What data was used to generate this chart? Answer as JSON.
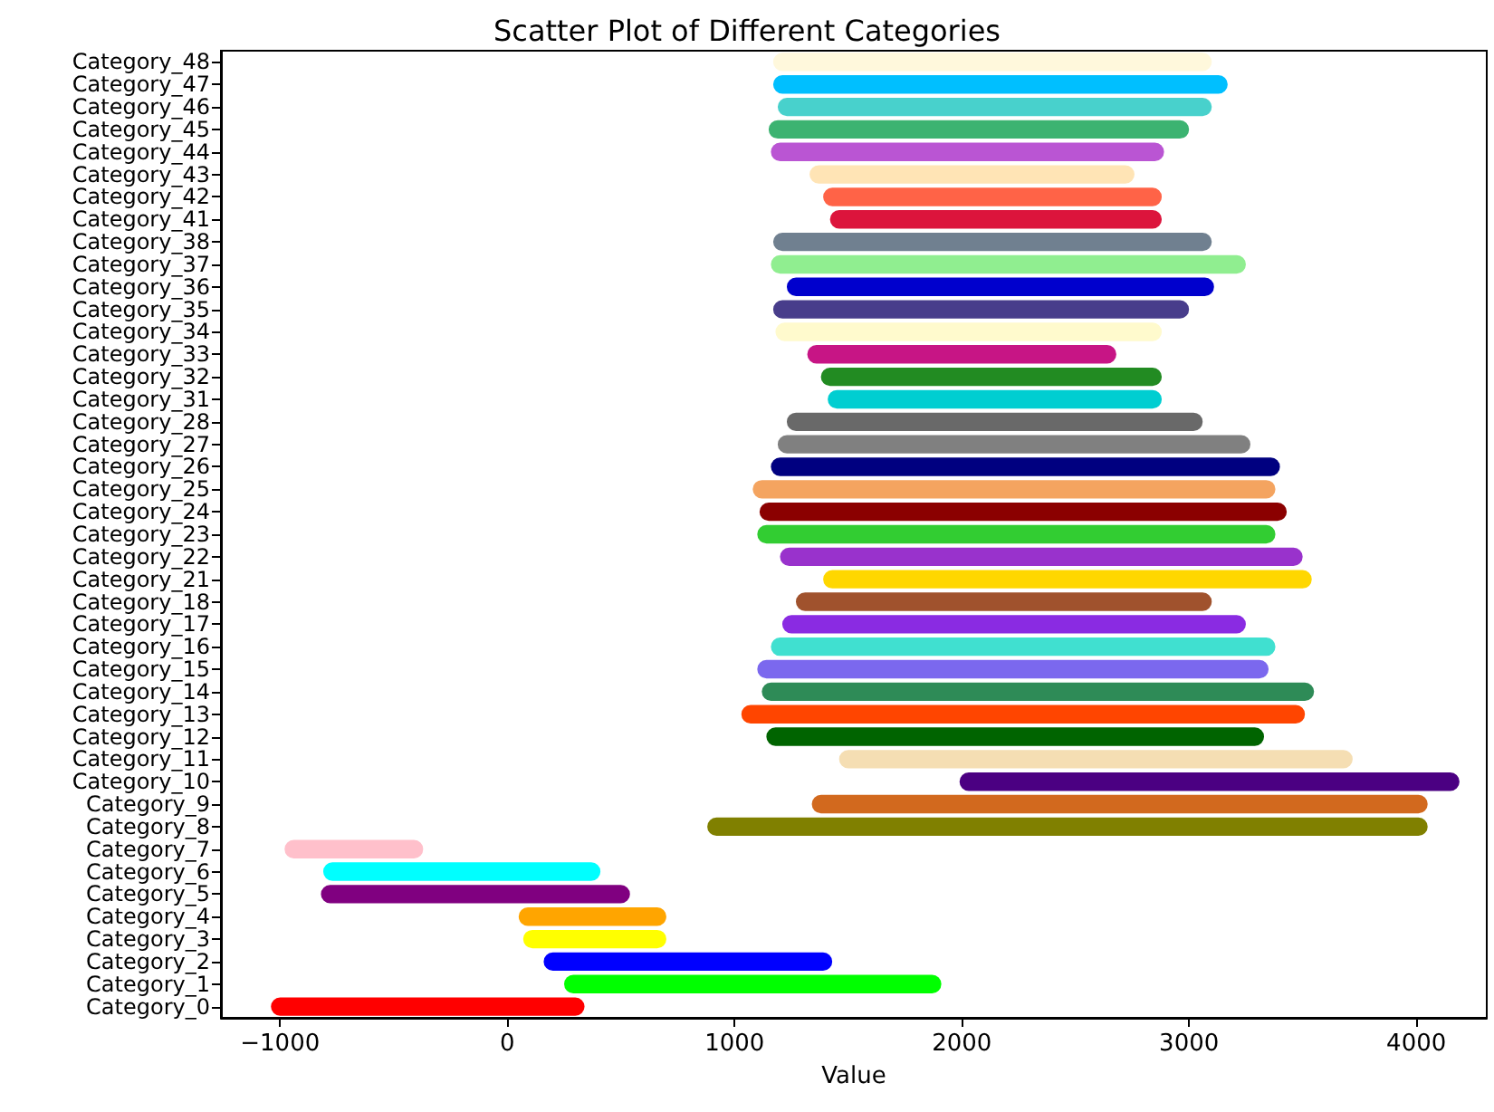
{
  "chart_data": {
    "type": "bar",
    "orientation": "horizontal",
    "title": "Scatter Plot of Different Categories",
    "xlabel": "Value",
    "categories": [
      "Category_48",
      "Category_47",
      "Category_46",
      "Category_45",
      "Category_44",
      "Category_43",
      "Category_42",
      "Category_41",
      "Category_38",
      "Category_37",
      "Category_36",
      "Category_35",
      "Category_34",
      "Category_33",
      "Category_32",
      "Category_31",
      "Category_28",
      "Category_27",
      "Category_26",
      "Category_25",
      "Category_24",
      "Category_23",
      "Category_22",
      "Category_21",
      "Category_18",
      "Category_17",
      "Category_16",
      "Category_15",
      "Category_14",
      "Category_13",
      "Category_12",
      "Category_11",
      "Category_10",
      "Category_9",
      "Category_8",
      "Category_7",
      "Category_6",
      "Category_5",
      "Category_4",
      "Category_3",
      "Category_2",
      "Category_1",
      "Category_0"
    ],
    "base": [
      1170,
      1170,
      1190,
      1150,
      1160,
      1330,
      1390,
      1420,
      1170,
      1160,
      1230,
      1170,
      1180,
      1320,
      1380,
      1410,
      1230,
      1190,
      1160,
      1080,
      1110,
      1100,
      1200,
      1390,
      1270,
      1210,
      1160,
      1100,
      1120,
      1030,
      1140,
      1460,
      1990,
      1340,
      880,
      -980,
      -810,
      -820,
      50,
      70,
      160,
      250,
      -1040
    ],
    "values": [
      1930,
      2000,
      1910,
      1850,
      1730,
      1430,
      1490,
      1460,
      1930,
      2090,
      1880,
      1830,
      1700,
      1360,
      1500,
      1470,
      1830,
      2080,
      2240,
      2300,
      2320,
      2280,
      2300,
      2150,
      1830,
      2040,
      2220,
      2250,
      2430,
      2480,
      2190,
      2260,
      2200,
      2710,
      3170,
      610,
      1220,
      1360,
      650,
      630,
      1270,
      1660,
      1380
    ],
    "colors": [
      "#fff8dc",
      "#00bfff",
      "#48d1cc",
      "#3cb371",
      "#ba55d3",
      "#ffe4b5",
      "#ff6347",
      "#dc143c",
      "#708090",
      "#90ee90",
      "#0000cd",
      "#483d8b",
      "#fffacd",
      "#c71585",
      "#228b22",
      "#00ced1",
      "#696969",
      "#808080",
      "#000080",
      "#f4a460",
      "#8b0000",
      "#32cd32",
      "#9932cc",
      "#ffd700",
      "#a0522d",
      "#8a2be2",
      "#40e0d0",
      "#7b68ee",
      "#2e8b57",
      "#ff4500",
      "#006400",
      "#f5deb3",
      "#4b0082",
      "#d2691e",
      "#808000",
      "#ffc0cb",
      "#00ffff",
      "#800080",
      "#ffa500",
      "#ffff00",
      "#0000ff",
      "#00ff00",
      "#ff0000"
    ],
    "xlim": [
      -1260,
      4310
    ],
    "xticks": [
      -1000,
      0,
      1000,
      2000,
      3000,
      4000
    ],
    "grid": false
  }
}
